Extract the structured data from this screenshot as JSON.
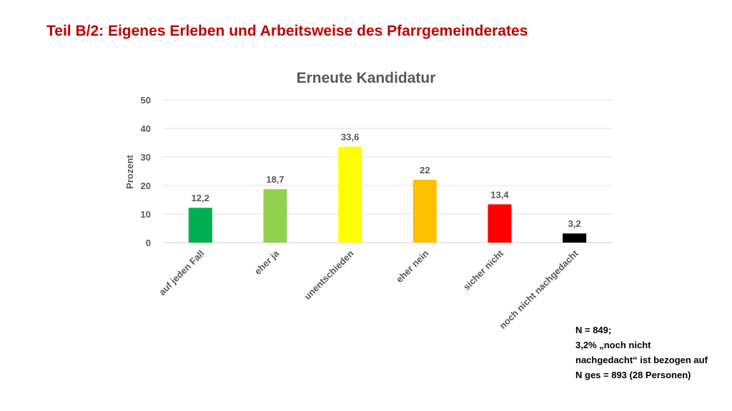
{
  "slide": {
    "title": "Teil B/2: Eigenes Erleben und Arbeitsweise des Pfarrgemeinderates"
  },
  "chart_data": {
    "type": "bar",
    "title": "Erneute Kandidatur",
    "ylabel": "Prozent",
    "xlabel": "",
    "ylim": [
      0,
      50
    ],
    "yticks": [
      0,
      10,
      20,
      30,
      40,
      50
    ],
    "grid": true,
    "legend": "none",
    "categories": [
      "auf jeden Fall",
      "eher ja",
      "unentschieden",
      "eher nein",
      "sicher nicht",
      "noch nicht nachgedacht"
    ],
    "values": [
      12.2,
      18.7,
      33.6,
      22,
      13.4,
      3.2
    ],
    "value_labels": [
      "12,2",
      "18,7",
      "33,6",
      "22",
      "13,4",
      "3,2"
    ],
    "colors": [
      "#00b050",
      "#92d050",
      "#ffff00",
      "#ffc000",
      "#ff0000",
      "#000000"
    ]
  },
  "note": {
    "lines": [
      "N = 849;",
      "3,2% „noch nicht",
      "nachgedacht“ ist bezogen auf",
      "N ges = 893 (28 Personen)"
    ]
  }
}
